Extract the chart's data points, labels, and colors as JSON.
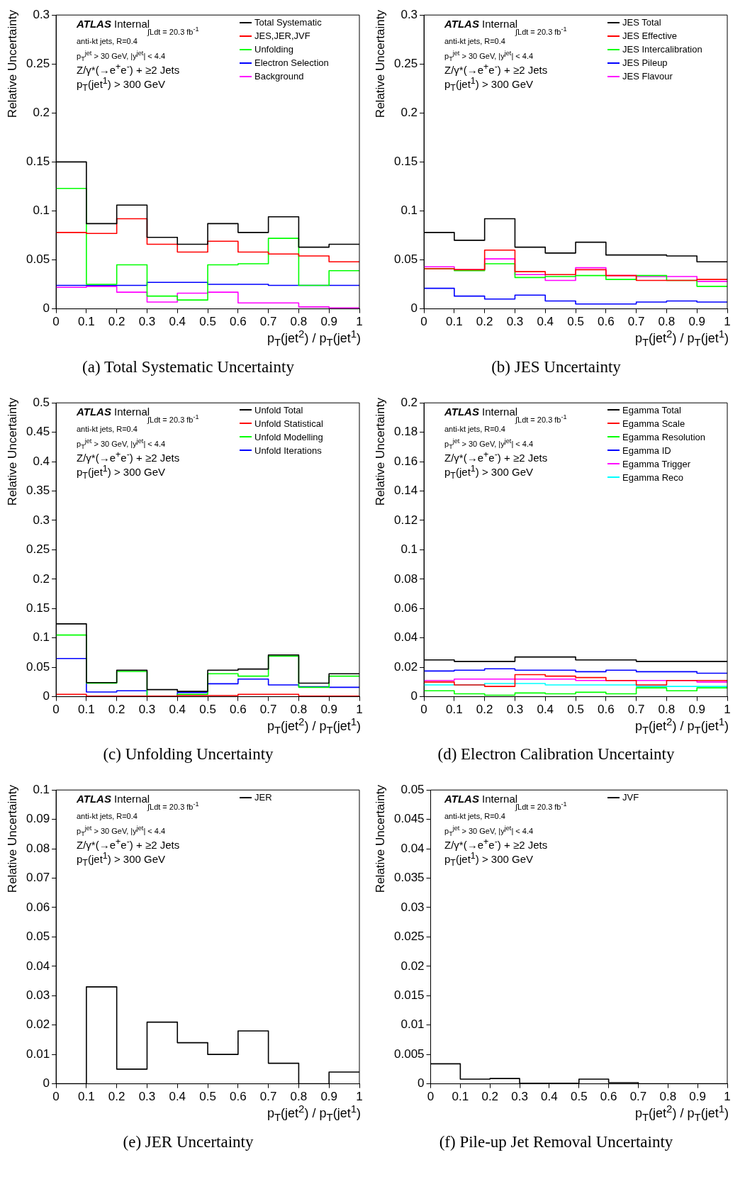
{
  "chart_data": [
    {
      "type": "histogram",
      "title": "(a) Total Systematic Uncertainty",
      "xlabel": "p$_{T}$(jet$^{2}$) / p$_{T}$(jet$^{1}$)",
      "ylabel": "Relative Uncertainty",
      "legend": "top right",
      "annotations": [
        "ATLAS Internal",
        "∫Ldt = 20.3 fb$^{-1}$",
        "anti-kt jets, R=0.4",
        "p$_{T}$$^{jet}$ > 30 GeV, |y$^{jet}$| < 4.4",
        "Z/γ*(→e$^{+}$e$^{-}$) + ≥2 Jets",
        "p$_{T}$(jet$^{1}$) > 300 GeV"
      ],
      "bins": [
        0,
        0.1,
        0.2,
        0.3,
        0.4,
        0.5,
        0.6,
        0.7,
        0.8,
        0.9,
        1
      ],
      "xlim": [
        0,
        1
      ],
      "xticks": [
        0,
        0.1,
        0.2,
        0.3,
        0.4,
        0.5,
        0.6,
        0.7,
        0.8,
        0.9,
        1
      ],
      "ylim": [
        0,
        0.3
      ],
      "yticks": [
        0,
        0.05,
        0.1,
        0.15,
        0.2,
        0.25,
        0.3
      ],
      "series": [
        {
          "name": "Total Systematic",
          "color": "#000000",
          "values": [
            0.15,
            0.087,
            0.106,
            0.073,
            0.066,
            0.087,
            0.078,
            0.094,
            0.063,
            0.066
          ]
        },
        {
          "name": "JES,JER,JVF",
          "color": "#ff0000",
          "values": [
            0.078,
            0.077,
            0.092,
            0.066,
            0.058,
            0.069,
            0.058,
            0.056,
            0.054,
            0.048
          ]
        },
        {
          "name": "Unfolding",
          "color": "#00ff00",
          "values": [
            0.123,
            0.025,
            0.045,
            0.013,
            0.009,
            0.045,
            0.046,
            0.072,
            0.024,
            0.039
          ]
        },
        {
          "name": "Electron Selection",
          "color": "#0000ff",
          "values": [
            0.024,
            0.024,
            0.024,
            0.027,
            0.027,
            0.025,
            0.025,
            0.024,
            0.024,
            0.024
          ]
        },
        {
          "name": "Background",
          "color": "#ff00ff",
          "values": [
            0.022,
            0.023,
            0.017,
            0.007,
            0.016,
            0.017,
            0.006,
            0.006,
            0.002,
            0.001
          ]
        }
      ]
    },
    {
      "type": "histogram",
      "title": "(b) JES Uncertainty",
      "xlabel": "p$_{T}$(jet$^{2}$) / p$_{T}$(jet$^{1}$)",
      "ylabel": "Relative Uncertainty",
      "legend": "top right",
      "annotations": [
        "ATLAS Internal",
        "∫Ldt = 20.3 fb$^{-1}$",
        "anti-kt jets, R=0.4",
        "p$_{T}$$^{jet}$ > 30 GeV, |y$^{jet}$| < 4.4",
        "Z/γ*(→e$^{+}$e$^{-}$) + ≥2 Jets",
        "p$_{T}$(jet$^{1}$) > 300 GeV"
      ],
      "bins": [
        0,
        0.1,
        0.2,
        0.3,
        0.4,
        0.5,
        0.6,
        0.7,
        0.8,
        0.9,
        1
      ],
      "xlim": [
        0,
        1
      ],
      "xticks": [
        0,
        0.1,
        0.2,
        0.3,
        0.4,
        0.5,
        0.6,
        0.7,
        0.8,
        0.9,
        1
      ],
      "ylim": [
        0,
        0.3
      ],
      "yticks": [
        0,
        0.05,
        0.1,
        0.15,
        0.2,
        0.25,
        0.3
      ],
      "series": [
        {
          "name": "JES Total",
          "color": "#000000",
          "values": [
            0.078,
            0.07,
            0.092,
            0.063,
            0.057,
            0.068,
            0.055,
            0.055,
            0.054,
            0.048
          ]
        },
        {
          "name": "JES Effective",
          "color": "#ff0000",
          "values": [
            0.041,
            0.04,
            0.06,
            0.038,
            0.035,
            0.04,
            0.034,
            0.029,
            0.029,
            0.03
          ]
        },
        {
          "name": "JES Intercalibration",
          "color": "#00ff00",
          "values": [
            0.041,
            0.039,
            0.046,
            0.032,
            0.033,
            0.034,
            0.03,
            0.034,
            0.029,
            0.023
          ]
        },
        {
          "name": "JES Pileup",
          "color": "#0000ff",
          "values": [
            0.021,
            0.013,
            0.01,
            0.014,
            0.008,
            0.005,
            0.005,
            0.007,
            0.008,
            0.007
          ]
        },
        {
          "name": "JES Flavour",
          "color": "#ff00ff",
          "values": [
            0.043,
            0.04,
            0.051,
            0.035,
            0.029,
            0.042,
            0.034,
            0.033,
            0.033,
            0.028
          ]
        }
      ]
    },
    {
      "type": "histogram",
      "title": "(c) Unfolding Uncertainty",
      "xlabel": "p$_{T}$(jet$^{2}$) / p$_{T}$(jet$^{1}$)",
      "ylabel": "Relative Uncertainty",
      "legend": "top right",
      "annotations": [
        "ATLAS Internal",
        "∫Ldt = 20.3 fb$^{-1}$",
        "anti-kt jets, R=0.4",
        "p$_{T}$$^{jet}$ > 30 GeV, |y$^{jet}$| < 4.4",
        "Z/γ*(→e$^{+}$e$^{-}$) + ≥2 Jets",
        "p$_{T}$(jet$^{1}$) > 300 GeV"
      ],
      "bins": [
        0,
        0.1,
        0.2,
        0.3,
        0.4,
        0.5,
        0.6,
        0.7,
        0.8,
        0.9,
        1
      ],
      "xlim": [
        0,
        1
      ],
      "xticks": [
        0,
        0.1,
        0.2,
        0.3,
        0.4,
        0.5,
        0.6,
        0.7,
        0.8,
        0.9,
        1
      ],
      "ylim": [
        0,
        0.5
      ],
      "yticks": [
        0,
        0.05,
        0.1,
        0.15,
        0.2,
        0.25,
        0.3,
        0.35,
        0.4,
        0.45,
        0.5
      ],
      "series": [
        {
          "name": "Unfold Total",
          "color": "#000000",
          "values": [
            0.124,
            0.024,
            0.045,
            0.012,
            0.009,
            0.045,
            0.047,
            0.071,
            0.023,
            0.039
          ]
        },
        {
          "name": "Unfold Statistical",
          "color": "#ff0000",
          "values": [
            0.004,
            0.001,
            0.001,
            0.001,
            0.002,
            0.002,
            0.004,
            0.004,
            0.001,
            0.001
          ]
        },
        {
          "name": "Unfold Modelling",
          "color": "#00ff00",
          "values": [
            0.105,
            0.023,
            0.043,
            0.001,
            0.004,
            0.039,
            0.035,
            0.069,
            0.016,
            0.035
          ]
        },
        {
          "name": "Unfold Iterations",
          "color": "#0000ff",
          "values": [
            0.065,
            0.008,
            0.01,
            0.001,
            0.007,
            0.022,
            0.03,
            0.02,
            0.017,
            0.016
          ]
        }
      ]
    },
    {
      "type": "histogram",
      "title": "(d) Electron Calibration Uncertainty",
      "xlabel": "p$_{T}$(jet$^{2}$) / p$_{T}$(jet$^{1}$)",
      "ylabel": "Relative Uncertainty",
      "legend": "top right",
      "annotations": [
        "ATLAS Internal",
        "∫Ldt = 20.3 fb$^{-1}$",
        "anti-kt jets, R=0.4",
        "p$_{T}$$^{jet}$ > 30 GeV, |y$^{jet}$| < 4.4",
        "Z/γ*(→e$^{+}$e$^{-}$) + ≥2 Jets",
        "p$_{T}$(jet$^{1}$) > 300 GeV"
      ],
      "bins": [
        0,
        0.1,
        0.2,
        0.3,
        0.4,
        0.5,
        0.6,
        0.7,
        0.8,
        0.9,
        1
      ],
      "xlim": [
        0,
        1
      ],
      "xticks": [
        0,
        0.1,
        0.2,
        0.3,
        0.4,
        0.5,
        0.6,
        0.7,
        0.8,
        0.9,
        1
      ],
      "ylim": [
        0,
        0.2
      ],
      "yticks": [
        0,
        0.02,
        0.04,
        0.06,
        0.08,
        0.1,
        0.12,
        0.14,
        0.16,
        0.18,
        0.2
      ],
      "series": [
        {
          "name": "Egamma Total",
          "color": "#000000",
          "values": [
            0.025,
            0.024,
            0.024,
            0.027,
            0.027,
            0.025,
            0.025,
            0.024,
            0.024,
            0.024
          ]
        },
        {
          "name": "Egamma Scale",
          "color": "#ff0000",
          "values": [
            0.01,
            0.008,
            0.007,
            0.015,
            0.014,
            0.013,
            0.011,
            0.008,
            0.011,
            0.011
          ]
        },
        {
          "name": "Egamma Resolution",
          "color": "#00ff00",
          "values": [
            0.004,
            0.002,
            0.001,
            0.0025,
            0.002,
            0.003,
            0.002,
            0.006,
            0.004,
            0.006
          ]
        },
        {
          "name": "Egamma ID",
          "color": "#0000ff",
          "values": [
            0.0175,
            0.018,
            0.019,
            0.018,
            0.018,
            0.017,
            0.018,
            0.017,
            0.017,
            0.016
          ]
        },
        {
          "name": "Egamma Trigger",
          "color": "#ff00ff",
          "values": [
            0.011,
            0.012,
            0.012,
            0.012,
            0.012,
            0.011,
            0.011,
            0.011,
            0.011,
            0.01
          ]
        },
        {
          "name": "Egamma Reco",
          "color": "#00ffff",
          "values": [
            0.008,
            0.008,
            0.009,
            0.009,
            0.008,
            0.008,
            0.008,
            0.007,
            0.007,
            0.007
          ]
        }
      ]
    },
    {
      "type": "histogram",
      "title": "(e) JER Uncertainty",
      "xlabel": "p$_{T}$(jet$^{2}$) / p$_{T}$(jet$^{1}$)",
      "ylabel": "Relative Uncertainty",
      "legend": "top right",
      "annotations": [
        "ATLAS Internal",
        "∫Ldt = 20.3 fb$^{-1}$",
        "anti-kt jets, R=0.4",
        "p$_{T}$$^{jet}$ > 30 GeV, |y$^{jet}$| < 4.4",
        "Z/γ*(→e$^{+}$e$^{-}$) + ≥2 Jets",
        "p$_{T}$(jet$^{1}$) > 300 GeV"
      ],
      "bins": [
        0,
        0.1,
        0.2,
        0.3,
        0.4,
        0.5,
        0.6,
        0.7,
        0.8,
        0.9,
        1
      ],
      "xlim": [
        0,
        1
      ],
      "xticks": [
        0,
        0.1,
        0.2,
        0.3,
        0.4,
        0.5,
        0.6,
        0.7,
        0.8,
        0.9,
        1
      ],
      "ylim": [
        0,
        0.1
      ],
      "yticks": [
        0,
        0.01,
        0.02,
        0.03,
        0.04,
        0.05,
        0.06,
        0.07,
        0.08,
        0.09,
        0.1
      ],
      "series": [
        {
          "name": "JER",
          "color": "#000000",
          "values": [
            0,
            0.033,
            0.005,
            0.021,
            0.014,
            0.01,
            0.018,
            0.007,
            0,
            0.004
          ]
        }
      ]
    },
    {
      "type": "histogram",
      "title": "(f) Pile-up Jet Removal Uncertainty",
      "xlabel": "p$_{T}$(jet$^{2}$) / p$_{T}$(jet$^{1}$)",
      "ylabel": "Relative Uncertainty",
      "legend": "top right",
      "annotations": [
        "ATLAS Internal",
        "∫Ldt = 20.3 fb$^{-1}$",
        "anti-kt jets, R=0.4",
        "p$_{T}$$^{jet}$ > 30 GeV, |y$^{jet}$| < 4.4",
        "Z/γ*(→e$^{+}$e$^{-}$) + ≥2 Jets",
        "p$_{T}$(jet$^{1}$) > 300 GeV"
      ],
      "bins": [
        0,
        0.1,
        0.2,
        0.3,
        0.4,
        0.5,
        0.6,
        0.7,
        0.8,
        0.9,
        1
      ],
      "xlim": [
        0,
        1
      ],
      "xticks": [
        0,
        0.1,
        0.2,
        0.3,
        0.4,
        0.5,
        0.6,
        0.7,
        0.8,
        0.9,
        1
      ],
      "ylim": [
        0,
        0.05
      ],
      "yticks": [
        0,
        0.005,
        0.01,
        0.015,
        0.02,
        0.025,
        0.03,
        0.035,
        0.04,
        0.045,
        0.05
      ],
      "series": [
        {
          "name": "JVF",
          "color": "#000000",
          "values": [
            0.0034,
            0.0008,
            0.0009,
            0.0001,
            0.0001,
            0.0008,
            0.0002,
            0,
            0,
            0
          ]
        }
      ]
    }
  ]
}
